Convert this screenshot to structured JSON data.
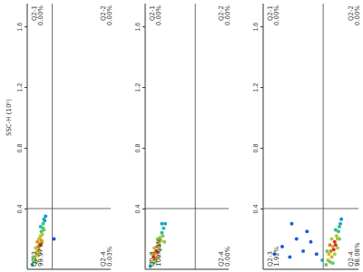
{
  "chart_data": [
    {
      "type": "scatter",
      "y_label": "SSC-H (10⁶)",
      "xlim": [
        0,
        10
      ],
      "ylim": [
        0,
        1.75
      ],
      "yticks": [
        0.4,
        0.8,
        1.2,
        1.6
      ],
      "tick_labels": "y",
      "x_gate": 3,
      "y_gate": 0.4,
      "quadrants": [
        {
          "name": "Q2-1",
          "label": "0.00%"
        },
        {
          "name": "Q2-2",
          "label": "0.00%"
        },
        {
          "name": "Q2-3",
          "label": "99.97%"
        },
        {
          "name": "Q2-4",
          "label": "0.03%"
        }
      ],
      "x": [
        0.6,
        0.8,
        0.9,
        1.0,
        1.1,
        1.2,
        1.3,
        1.3,
        1.4,
        1.5,
        1.5,
        1.6,
        1.6,
        1.7,
        1.7,
        1.8,
        1.9,
        1.9,
        2.0,
        2.1,
        1.2,
        1.0,
        1.4,
        1.8,
        2.2,
        1.1,
        1.5,
        1.6,
        2.0,
        0.7,
        3.2
      ],
      "y": [
        0.03,
        0.05,
        0.08,
        0.06,
        0.1,
        0.12,
        0.09,
        0.15,
        0.13,
        0.17,
        0.2,
        0.16,
        0.22,
        0.19,
        0.25,
        0.23,
        0.27,
        0.3,
        0.26,
        0.32,
        0.18,
        0.14,
        0.2,
        0.18,
        0.35,
        0.05,
        0.12,
        0.28,
        0.33,
        0.08,
        0.2
      ]
    },
    {
      "type": "scatter",
      "xlim": [
        0,
        10
      ],
      "ylim": [
        0,
        1.75
      ],
      "yticks": [
        0.4,
        0.8,
        1.2,
        1.6
      ],
      "tick_labels": "y",
      "x_gate": 6,
      "y_gate": 0.4,
      "quadrants": [
        {
          "name": "Q2-1",
          "label": "0.00%"
        },
        {
          "name": "Q2-2",
          "label": "0.00%"
        },
        {
          "name": "Q2-3",
          "label": "100.00%"
        },
        {
          "name": "Q2-4",
          "label": "0.00%"
        }
      ],
      "x": [
        0.6,
        0.7,
        0.9,
        1.0,
        1.1,
        1.2,
        1.3,
        1.4,
        1.5,
        1.6,
        1.7,
        1.8,
        1.9,
        2.0,
        2.1,
        2.2,
        2.4,
        1.3,
        1.5,
        1.8,
        1.1,
        2.3,
        0.8,
        1.6,
        2.0
      ],
      "y": [
        0.02,
        0.05,
        0.04,
        0.08,
        0.1,
        0.07,
        0.12,
        0.15,
        0.11,
        0.18,
        0.16,
        0.21,
        0.19,
        0.24,
        0.22,
        0.27,
        0.3,
        0.05,
        0.2,
        0.13,
        0.14,
        0.18,
        0.1,
        0.08,
        0.3
      ]
    },
    {
      "type": "scatter",
      "xlim": [
        0,
        10
      ],
      "ylim": [
        0,
        1.75
      ],
      "yticks": [
        0.4,
        0.8,
        1.2,
        1.6
      ],
      "tick_labels": "y",
      "x_gate": 6.3,
      "y_gate": 0.4,
      "quadrants": [
        {
          "name": "Q2-1",
          "label": "0.00%"
        },
        {
          "name": "Q2-2",
          "label": "0.00%"
        },
        {
          "name": "Q2-3",
          "label": "1.92%"
        },
        {
          "name": "Q2-4",
          "label": "98.08%"
        }
      ],
      "x": [
        6.6,
        6.8,
        7.0,
        6.9,
        7.1,
        7.2,
        7.3,
        7.4,
        7.5,
        7.6,
        7.7,
        7.8,
        7.9,
        8.0,
        8.1,
        7.2,
        7.5,
        7.0,
        7.8,
        7.6,
        8.2,
        6.7,
        7.3,
        8.0,
        1.2,
        2.0,
        2.8,
        3.5,
        4.2,
        5.0,
        5.6,
        4.6,
        3.0,
        6.2
      ],
      "y": [
        0.03,
        0.06,
        0.05,
        0.1,
        0.12,
        0.08,
        0.15,
        0.13,
        0.18,
        0.16,
        0.22,
        0.2,
        0.25,
        0.28,
        0.3,
        0.2,
        0.1,
        0.16,
        0.14,
        0.26,
        0.33,
        0.12,
        0.04,
        0.2,
        0.1,
        0.15,
        0.08,
        0.2,
        0.12,
        0.18,
        0.1,
        0.25,
        0.3,
        0.06
      ]
    }
  ]
}
